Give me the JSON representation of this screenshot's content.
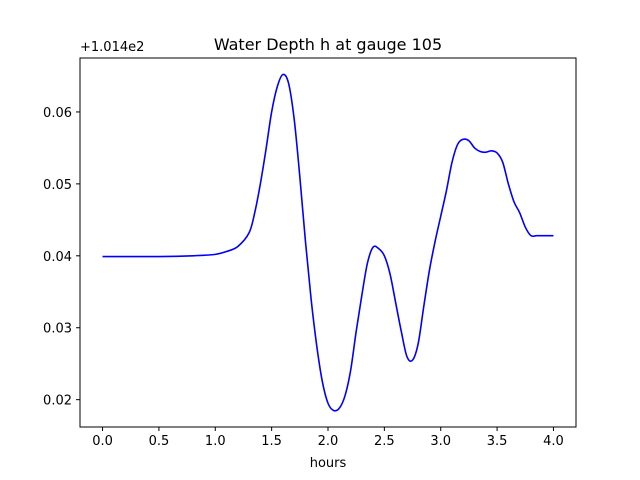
{
  "chart_data": {
    "type": "line",
    "title": "Water Depth h at gauge 105",
    "xlabel": "hours",
    "ylabel": "",
    "offset_label": "+1.014e2",
    "xlim": [
      -0.2,
      4.2
    ],
    "ylim": [
      0.0162,
      0.0675
    ],
    "xticks": [
      0.0,
      0.5,
      1.0,
      1.5,
      2.0,
      2.5,
      3.0,
      3.5,
      4.0
    ],
    "xtick_labels": [
      "0.0",
      "0.5",
      "1.0",
      "1.5",
      "2.0",
      "2.5",
      "3.0",
      "3.5",
      "4.0"
    ],
    "yticks": [
      0.02,
      0.03,
      0.04,
      0.05,
      0.06
    ],
    "ytick_labels": [
      "0.02",
      "0.03",
      "0.04",
      "0.05",
      "0.06"
    ],
    "grid": false,
    "series": [
      {
        "color": "#0000ff",
        "x": [
          0.0,
          0.5,
          0.8,
          1.0,
          1.1,
          1.2,
          1.3,
          1.35,
          1.4,
          1.45,
          1.5,
          1.55,
          1.6,
          1.65,
          1.7,
          1.75,
          1.8,
          1.85,
          1.9,
          1.95,
          2.0,
          2.05,
          2.1,
          2.15,
          2.2,
          2.25,
          2.3,
          2.35,
          2.4,
          2.45,
          2.5,
          2.55,
          2.6,
          2.65,
          2.7,
          2.75,
          2.8,
          2.85,
          2.9,
          2.95,
          3.0,
          3.05,
          3.1,
          3.15,
          3.2,
          3.25,
          3.3,
          3.35,
          3.4,
          3.45,
          3.5,
          3.55,
          3.6,
          3.65,
          3.7,
          3.75,
          3.8,
          3.85,
          3.9,
          3.95,
          4.0
        ],
        "y": [
          0.0399,
          0.0399,
          0.04,
          0.0402,
          0.0406,
          0.0413,
          0.0432,
          0.046,
          0.05,
          0.0548,
          0.06,
          0.0635,
          0.0652,
          0.064,
          0.059,
          0.051,
          0.042,
          0.034,
          0.0275,
          0.0225,
          0.0195,
          0.0185,
          0.0188,
          0.0205,
          0.024,
          0.0295,
          0.0345,
          0.039,
          0.0412,
          0.041,
          0.04,
          0.0375,
          0.0335,
          0.0295,
          0.026,
          0.0255,
          0.0278,
          0.033,
          0.038,
          0.042,
          0.0455,
          0.049,
          0.053,
          0.0555,
          0.0562,
          0.056,
          0.055,
          0.0545,
          0.0544,
          0.0546,
          0.0543,
          0.053,
          0.05,
          0.0475,
          0.046,
          0.044,
          0.0428,
          0.0428,
          0.0428,
          0.0428,
          0.0428
        ]
      }
    ]
  }
}
